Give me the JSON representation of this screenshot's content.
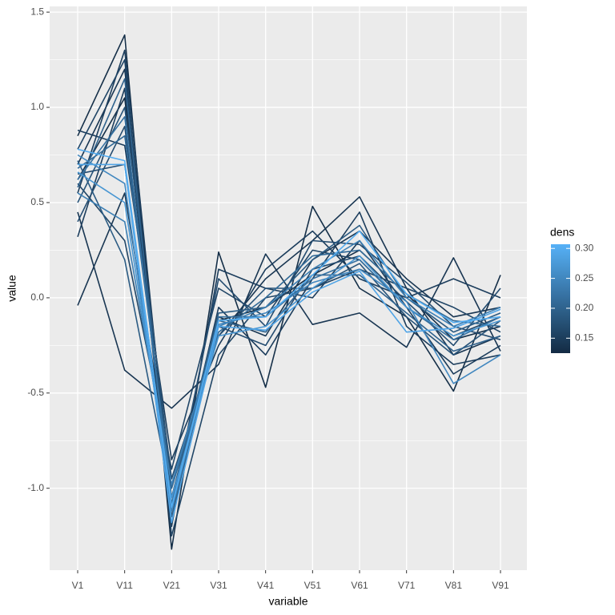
{
  "chart_data": {
    "type": "line",
    "x_label": "variable",
    "y_label": "value",
    "categories": [
      "V1",
      "V11",
      "V21",
      "V31",
      "V41",
      "V51",
      "V61",
      "V71",
      "V81",
      "V91"
    ],
    "ylim": [
      -1.43,
      1.53
    ],
    "yticks": [
      {
        "value": -1.0,
        "label": "-1.0"
      },
      -0.5,
      {
        "value": 0.0,
        "label": "0.0"
      },
      0.5,
      {
        "value": 1.0,
        "label": "1.0"
      },
      1.5
    ],
    "grid": true,
    "colorbar": {
      "title": "dens",
      "lim": [
        0.125,
        0.307
      ],
      "ticks": [
        0.15,
        {
          "value": 0.2,
          "label": "0.20"
        },
        0.25,
        {
          "value": 0.3,
          "label": "0.30"
        }
      ],
      "low": "#132b43",
      "high": "#56b1f7"
    },
    "series": [
      {
        "dens": 0.13,
        "values": [
          0.62,
          1.05,
          -1.15,
          -0.12,
          -0.05,
          0.12,
          0.25,
          0.02,
          -0.22,
          -0.15
        ]
      },
      {
        "dens": 0.13,
        "values": [
          0.85,
          1.38,
          -1.32,
          0.24,
          -0.47,
          0.48,
          0.05,
          -0.1,
          -0.49,
          0.12
        ]
      },
      {
        "dens": 0.14,
        "values": [
          -0.04,
          0.55,
          -0.95,
          -0.2,
          0.1,
          0.3,
          0.53,
          0.05,
          -0.3,
          -0.2
        ]
      },
      {
        "dens": 0.14,
        "values": [
          0.45,
          -0.38,
          -0.58,
          -0.35,
          0.23,
          -0.14,
          -0.08,
          -0.26,
          0.21,
          -0.28
        ]
      },
      {
        "dens": 0.14,
        "values": [
          0.7,
          1.2,
          -1.05,
          -0.1,
          -0.2,
          0.2,
          0.35,
          0.1,
          -0.1,
          -0.05
        ]
      },
      {
        "dens": 0.15,
        "values": [
          0.32,
          1.1,
          -1.2,
          0.15,
          0.05,
          0.0,
          0.3,
          -0.05,
          -0.4,
          -0.25
        ]
      },
      {
        "dens": 0.15,
        "values": [
          0.88,
          0.8,
          -0.85,
          -0.25,
          0.15,
          0.35,
          0.1,
          0.0,
          0.1,
          0.0
        ]
      },
      {
        "dens": 0.15,
        "values": [
          0.55,
          1.3,
          -1.1,
          -0.05,
          -0.3,
          0.1,
          0.45,
          -0.15,
          -0.35,
          -0.3
        ]
      },
      {
        "dens": 0.16,
        "values": [
          0.6,
          0.3,
          -0.9,
          0.05,
          -0.1,
          0.25,
          0.2,
          -0.05,
          -0.2,
          -0.1
        ]
      },
      {
        "dens": 0.16,
        "values": [
          0.78,
          1.25,
          -1.25,
          -0.3,
          0.0,
          0.05,
          0.15,
          0.05,
          -0.05,
          -0.18
        ]
      },
      {
        "dens": 0.17,
        "values": [
          0.4,
          0.9,
          -1.0,
          -0.15,
          -0.25,
          0.15,
          0.22,
          -0.02,
          -0.25,
          0.05
        ]
      },
      {
        "dens": 0.17,
        "values": [
          0.65,
          0.7,
          -1.1,
          0.1,
          -0.15,
          0.3,
          0.28,
          0.08,
          -0.15,
          -0.22
        ]
      },
      {
        "dens": 0.18,
        "values": [
          0.5,
          1.0,
          -0.95,
          -0.2,
          0.05,
          0.05,
          0.18,
          -0.1,
          -0.3,
          -0.12
        ]
      },
      {
        "dens": 0.19,
        "values": [
          0.72,
          0.2,
          -1.05,
          -0.08,
          -0.05,
          0.2,
          0.38,
          0.0,
          -0.18,
          -0.08
        ]
      },
      {
        "dens": 0.2,
        "values": [
          0.58,
          1.15,
          -1.15,
          -0.12,
          -0.18,
          0.12,
          0.12,
          -0.08,
          -0.28,
          -0.2
        ]
      },
      {
        "dens": 0.21,
        "values": [
          0.68,
          0.85,
          -1.0,
          -0.18,
          0.0,
          0.22,
          0.25,
          0.02,
          -0.12,
          -0.15
        ]
      },
      {
        "dens": 0.22,
        "values": [
          0.62,
          0.95,
          -1.08,
          -0.1,
          -0.1,
          0.1,
          0.2,
          -0.05,
          -0.22,
          -0.1
        ]
      },
      {
        "dens": 0.24,
        "values": [
          0.55,
          0.4,
          -0.98,
          -0.15,
          -0.05,
          0.15,
          0.3,
          0.0,
          -0.15,
          -0.05
        ]
      },
      {
        "dens": 0.25,
        "values": [
          0.75,
          0.6,
          -1.12,
          -0.14,
          -0.08,
          0.08,
          0.15,
          -0.02,
          -0.45,
          -0.3
        ]
      },
      {
        "dens": 0.27,
        "values": [
          0.66,
          0.5,
          -1.05,
          -0.2,
          -0.15,
          0.05,
          0.22,
          -0.05,
          -0.2,
          -0.12
        ]
      },
      {
        "dens": 0.29,
        "values": [
          0.7,
          0.7,
          -1.18,
          -0.15,
          -0.17,
          0.03,
          0.14,
          -0.18,
          -0.16,
          -0.06
        ]
      },
      {
        "dens": 0.3,
        "values": [
          0.78,
          0.72,
          -1.1,
          -0.12,
          -0.1,
          0.12,
          0.35,
          0.02,
          -0.13,
          -0.1
        ]
      }
    ]
  }
}
